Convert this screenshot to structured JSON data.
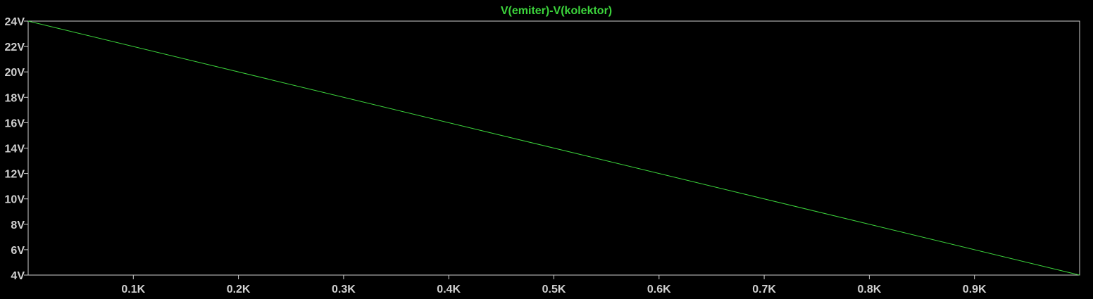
{
  "plot": {
    "title": "V(emiter)-V(kolektor)",
    "colors": {
      "background": "#000000",
      "axis": "#d0d0d0",
      "trace": "#3cd43c",
      "title": "#3cd43c"
    }
  },
  "chart_data": {
    "type": "line",
    "title": "V(emiter)-V(kolektor)",
    "xlabel": "",
    "ylabel": "",
    "xlim": [
      0,
      1000
    ],
    "ylim": [
      4,
      24
    ],
    "grid": false,
    "x_ticks": [
      {
        "value": 100,
        "label": "0.1K"
      },
      {
        "value": 200,
        "label": "0.2K"
      },
      {
        "value": 300,
        "label": "0.3K"
      },
      {
        "value": 400,
        "label": "0.4K"
      },
      {
        "value": 500,
        "label": "0.5K"
      },
      {
        "value": 600,
        "label": "0.6K"
      },
      {
        "value": 700,
        "label": "0.7K"
      },
      {
        "value": 800,
        "label": "0.8K"
      },
      {
        "value": 900,
        "label": "0.9K"
      }
    ],
    "y_ticks": [
      {
        "value": 4,
        "label": "4V"
      },
      {
        "value": 6,
        "label": "6V"
      },
      {
        "value": 8,
        "label": "8V"
      },
      {
        "value": 10,
        "label": "10V"
      },
      {
        "value": 12,
        "label": "12V"
      },
      {
        "value": 14,
        "label": "14V"
      },
      {
        "value": 16,
        "label": "16V"
      },
      {
        "value": 18,
        "label": "18V"
      },
      {
        "value": 20,
        "label": "20V"
      },
      {
        "value": 22,
        "label": "22V"
      },
      {
        "value": 24,
        "label": "24V"
      }
    ],
    "series": [
      {
        "name": "V(emiter)-V(kolektor)",
        "x": [
          0,
          1000
        ],
        "y": [
          24,
          4
        ]
      }
    ]
  }
}
